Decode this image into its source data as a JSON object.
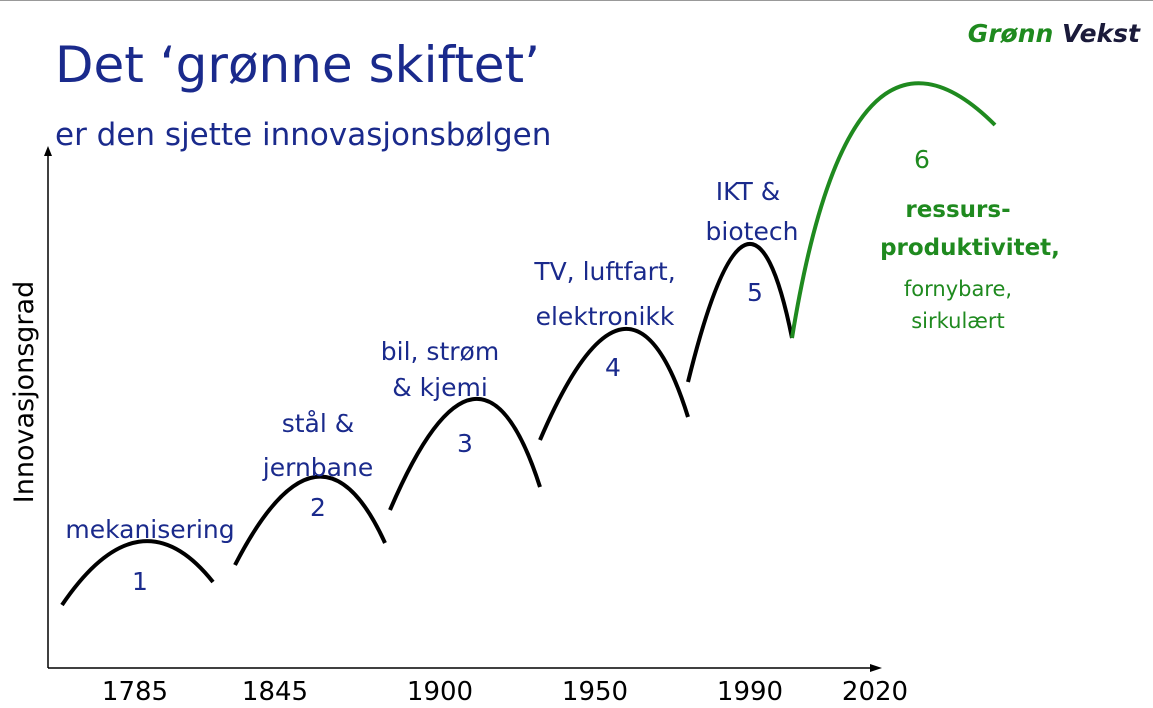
{
  "header": {
    "title": "Det ‘grønne skiftet’",
    "subtitle": "er den sjette innovasjonsbølgen",
    "brand": {
      "green": "Grønn",
      "dark": "Vekst"
    }
  },
  "y_axis_label": "Innovasjonsgrad",
  "x_labels": [
    "1785",
    "1845",
    "1900",
    "1950",
    "1990",
    "2020"
  ],
  "waves": [
    {
      "number": "1",
      "label": [
        "mekanisering"
      ]
    },
    {
      "number": "2",
      "label": [
        "stål &",
        "jernbane"
      ]
    },
    {
      "number": "3",
      "label": [
        "bil, strøm",
        "& kjemi"
      ]
    },
    {
      "number": "4",
      "label": [
        "TV, luftfart,",
        "elektronikk"
      ]
    },
    {
      "number": "5",
      "label": [
        "IKT &",
        "biotech"
      ]
    },
    {
      "number": "6",
      "label": [
        "ressurs-",
        "produktivitet,",
        "fornybare,",
        "sirkulært"
      ]
    }
  ]
}
